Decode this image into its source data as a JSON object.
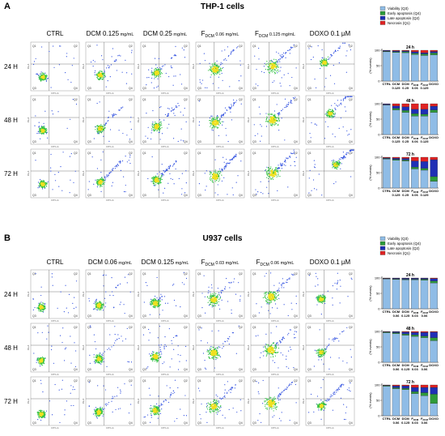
{
  "colors": {
    "viability": "#8fbce6",
    "early_apoptosis": "#2e9b3a",
    "late_apoptosis": "#1f2fb5",
    "necrosis": "#e02323",
    "density_low": "#3050e0",
    "density_mid": "#30c040",
    "density_high": "#f0e020"
  },
  "quadrant_labels": [
    "Q1",
    "Q2",
    "Q3",
    "Q4"
  ],
  "axis_labels": {
    "x": "FITC-A",
    "y": "PE-A"
  },
  "tick_labels": [
    "10¹",
    "10²",
    "10³",
    "10⁴",
    "10⁵",
    "10⁶"
  ],
  "bar_y_label": "(% events)",
  "bar_y_ticks": [
    "0",
    "50",
    "100"
  ],
  "panels": [
    {
      "letter": "A",
      "title": "THP-1 cells",
      "columns": [
        {
          "main": "CTRL",
          "sub": "",
          "conc": ""
        },
        {
          "main": "DCM 0.125",
          "sub": "",
          "conc": " mg/mL"
        },
        {
          "main": "DCM 0.25",
          "sub": "",
          "conc": " mg/mL"
        },
        {
          "main": "F",
          "sub": "DCM",
          "conc": " 0.06 mg/mL"
        },
        {
          "main": "F",
          "sub": "DCM",
          "conc": " 0.125 mg/mL"
        },
        {
          "main": "DOXO 0.1 µM",
          "sub": "",
          "conc": ""
        }
      ],
      "rows": [
        "24 H",
        "48 H",
        "72 H"
      ],
      "legend": [
        "Viability (Q3)",
        "Early apoptosis (Q4)",
        "Late apoptosis (Q2)",
        "Necrosis (Q1)"
      ],
      "bar_categories": [
        {
          "l1": "CTRL",
          "l2": ""
        },
        {
          "l1": "DCM",
          "l2": "0.125"
        },
        {
          "l1": "DCM",
          "l2": "0.25"
        },
        {
          "l1": "F",
          "sub": "DCM",
          "l2": "0.06"
        },
        {
          "l1": "F",
          "sub": "DCM",
          "l2": "0.125"
        },
        {
          "l1": "DOXO",
          "l2": ""
        }
      ]
    },
    {
      "letter": "B",
      "title": "U937 cells",
      "columns": [
        {
          "main": "CTRL",
          "sub": "",
          "conc": ""
        },
        {
          "main": "DCM 0.06",
          "sub": "",
          "conc": " mg/mL"
        },
        {
          "main": "DCM 0.125",
          "sub": "",
          "conc": " mg/mL"
        },
        {
          "main": "F",
          "sub": "DCM",
          "conc": " 0.03 mg/mL"
        },
        {
          "main": "F",
          "sub": "DCM",
          "conc": " 0.06 mg/mL"
        },
        {
          "main": "DOXO 0.1 µM",
          "sub": "",
          "conc": ""
        }
      ],
      "rows": [
        "24 H",
        "48 H",
        "72 H"
      ],
      "legend": [
        "Viability (Q3)",
        "Early apoptosis (Q4)",
        "Late apoptosis (Q2)",
        "Necrosis (Q1)"
      ],
      "bar_categories": [
        {
          "l1": "CTRL",
          "l2": ""
        },
        {
          "l1": "DCM",
          "l2": "0.06"
        },
        {
          "l1": "DCM",
          "l2": "0.125"
        },
        {
          "l1": "F",
          "sub": "DCM",
          "l2": "0.03"
        },
        {
          "l1": "F",
          "sub": "DCM",
          "l2": "0.06"
        },
        {
          "l1": "DOXO",
          "l2": ""
        }
      ]
    }
  ],
  "chart_data": [
    {
      "type": "bar",
      "panel": "A",
      "title": "24 h",
      "ylabel": "(% events)",
      "ylim": [
        0,
        100
      ],
      "stacked": true,
      "categories": [
        "CTRL",
        "DCM 0.125",
        "DCM 0.25",
        "FDCM 0.06",
        "FDCM 0.125",
        "DOXO"
      ],
      "series": [
        {
          "name": "Viability (Q3)",
          "values": [
            95,
            93,
            92,
            86,
            83,
            85
          ]
        },
        {
          "name": "Early apoptosis (Q4)",
          "values": [
            2,
            2,
            3,
            4,
            5,
            6
          ]
        },
        {
          "name": "Late apoptosis (Q2)",
          "values": [
            2,
            3,
            3,
            5,
            4,
            5
          ]
        },
        {
          "name": "Necrosis (Q1)",
          "values": [
            1,
            2,
            2,
            5,
            8,
            4
          ]
        }
      ]
    },
    {
      "type": "bar",
      "panel": "A",
      "title": "48 h",
      "ylabel": "(% events)",
      "ylim": [
        0,
        100
      ],
      "stacked": true,
      "categories": [
        "CTRL",
        "DCM 0.125",
        "DCM 0.25",
        "FDCM 0.06",
        "FDCM 0.125",
        "DOXO"
      ],
      "series": [
        {
          "name": "Viability (Q3)",
          "values": [
            96,
            80,
            72,
            60,
            60,
            72
          ]
        },
        {
          "name": "Early apoptosis (Q4)",
          "values": [
            1,
            5,
            6,
            8,
            6,
            8
          ]
        },
        {
          "name": "Late apoptosis (Q2)",
          "values": [
            2,
            8,
            12,
            14,
            16,
            12
          ]
        },
        {
          "name": "Necrosis (Q1)",
          "values": [
            1,
            7,
            10,
            18,
            18,
            8
          ]
        }
      ]
    },
    {
      "type": "bar",
      "panel": "A",
      "title": "72 h",
      "ylabel": "(% events)",
      "ylim": [
        0,
        100
      ],
      "stacked": true,
      "categories": [
        "CTRL",
        "DCM 0.125",
        "DCM 0.25",
        "FDCM 0.06",
        "FDCM 0.125",
        "DOXO"
      ],
      "series": [
        {
          "name": "Viability (Q3)",
          "values": [
            94,
            90,
            88,
            62,
            58,
            22
          ]
        },
        {
          "name": "Early apoptosis (Q4)",
          "values": [
            2,
            3,
            3,
            6,
            6,
            15
          ]
        },
        {
          "name": "Late apoptosis (Q2)",
          "values": [
            2,
            4,
            5,
            20,
            22,
            55
          ]
        },
        {
          "name": "Necrosis (Q1)",
          "values": [
            2,
            3,
            4,
            12,
            14,
            8
          ]
        }
      ]
    },
    {
      "type": "bar",
      "panel": "B",
      "title": "24 h",
      "ylabel": "(% events)",
      "ylim": [
        0,
        100
      ],
      "stacked": true,
      "categories": [
        "CTRL",
        "DCM 0.06",
        "DCM 0.125",
        "FDCM 0.03",
        "FDCM 0.06",
        "DOXO"
      ],
      "series": [
        {
          "name": "Viability (Q3)",
          "values": [
            97,
            95,
            94,
            94,
            93,
            84
          ]
        },
        {
          "name": "Early apoptosis (Q4)",
          "values": [
            1,
            2,
            2,
            2,
            3,
            6
          ]
        },
        {
          "name": "Late apoptosis (Q2)",
          "values": [
            1,
            2,
            3,
            3,
            3,
            8
          ]
        },
        {
          "name": "Necrosis (Q1)",
          "values": [
            1,
            1,
            1,
            1,
            1,
            2
          ]
        }
      ]
    },
    {
      "type": "bar",
      "panel": "B",
      "title": "48 h",
      "ylabel": "(% events)",
      "ylim": [
        0,
        100
      ],
      "stacked": true,
      "categories": [
        "CTRL",
        "DCM 0.06",
        "DCM 0.125",
        "FDCM 0.03",
        "FDCM 0.06",
        "DOXO"
      ],
      "series": [
        {
          "name": "Viability (Q3)",
          "values": [
            96,
            93,
            88,
            84,
            80,
            70
          ]
        },
        {
          "name": "Early apoptosis (Q4)",
          "values": [
            2,
            3,
            4,
            5,
            5,
            10
          ]
        },
        {
          "name": "Late apoptosis (Q2)",
          "values": [
            1,
            3,
            6,
            8,
            12,
            18
          ]
        },
        {
          "name": "Necrosis (Q1)",
          "values": [
            1,
            1,
            2,
            3,
            3,
            2
          ]
        }
      ]
    },
    {
      "type": "bar",
      "panel": "B",
      "title": "72 h",
      "ylabel": "(% events)",
      "ylim": [
        0,
        100
      ],
      "stacked": true,
      "categories": [
        "CTRL",
        "DCM 0.06",
        "DCM 0.125",
        "FDCM 0.03",
        "FDCM 0.06",
        "DOXO"
      ],
      "series": [
        {
          "name": "Viability (Q3)",
          "values": [
            96,
            88,
            85,
            72,
            65,
            40
          ]
        },
        {
          "name": "Early apoptosis (Q4)",
          "values": [
            2,
            3,
            4,
            6,
            10,
            30
          ]
        },
        {
          "name": "Late apoptosis (Q2)",
          "values": [
            1,
            6,
            8,
            14,
            17,
            22
          ]
        },
        {
          "name": "Necrosis (Q1)",
          "values": [
            1,
            3,
            3,
            8,
            8,
            8
          ]
        }
      ]
    }
  ]
}
